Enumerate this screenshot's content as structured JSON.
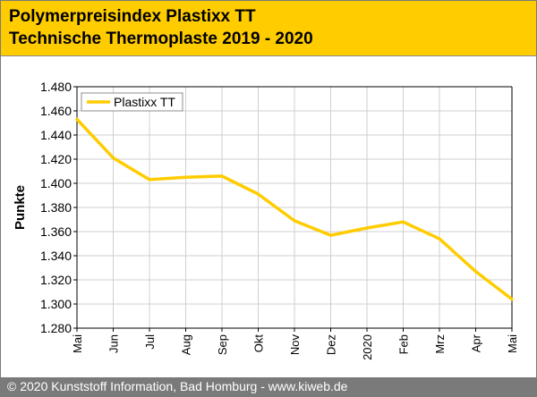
{
  "header": {
    "title_line1": "Polymerpreisindex Plastixx TT",
    "title_line2": "Technische Thermoplaste 2019 - 2020",
    "background": "#ffcc00"
  },
  "footer": {
    "text": "© 2020 Kunststoff Information, Bad Homburg - www.kiweb.de",
    "background": "#7a7a7a"
  },
  "chart_data": {
    "type": "line",
    "title": "Polymerpreisindex Plastixx TT",
    "subtitle": "Technische Thermoplaste 2019 - 2020",
    "xlabel": "",
    "ylabel": "Punkte",
    "categories": [
      "Mai",
      "Jun",
      "Jul",
      "Aug",
      "Sep",
      "Okt",
      "Nov",
      "Dez",
      "2020",
      "Feb",
      "Mrz",
      "Apr",
      "Mai"
    ],
    "series": [
      {
        "name": "Plastixx TT",
        "color": "#ffcc00",
        "values": [
          1.453,
          1.421,
          1.403,
          1.405,
          1.406,
          1.391,
          1.369,
          1.357,
          1.363,
          1.368,
          1.354,
          1.327,
          1.304
        ]
      }
    ],
    "ylim": [
      1.28,
      1.48
    ],
    "yticks": [
      "1.280",
      "1.300",
      "1.320",
      "1.340",
      "1.360",
      "1.380",
      "1.400",
      "1.420",
      "1.440",
      "1.460",
      "1.480"
    ],
    "grid": true,
    "legend": "top-left"
  }
}
